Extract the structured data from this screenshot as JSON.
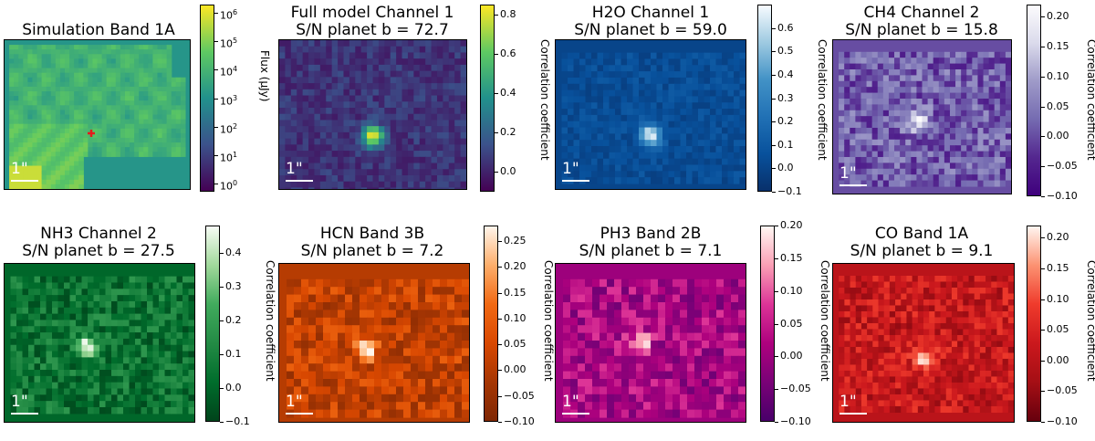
{
  "scale_label": "1\"",
  "chart_data": [
    {
      "type": "heatmap",
      "title_line1": "Simulation Band 1A",
      "title_line2": "",
      "colormap": "viridis",
      "colorbar_label": "Flux (μJy)",
      "colorbar_scale": "log",
      "clim": [
        0.5,
        2000000
      ],
      "ticks": [
        {
          "label": "10",
          "exp": "6",
          "value": 1000000
        },
        {
          "label": "10",
          "exp": "5",
          "value": 100000
        },
        {
          "label": "10",
          "exp": "4",
          "value": 10000
        },
        {
          "label": "10",
          "exp": "3",
          "value": 1000
        },
        {
          "label": "10",
          "exp": "2",
          "value": 100
        },
        {
          "label": "10",
          "exp": "1",
          "value": 10
        },
        {
          "label": "10",
          "exp": "0",
          "value": 1
        }
      ],
      "planet_marker": "red cross"
    },
    {
      "type": "heatmap",
      "title_line1": "Full model Channel 1",
      "title_line2": "S/N planet b = 72.7",
      "colormap": "viridis",
      "colorbar_label": "Correlation coefficient",
      "clim": [
        -0.1,
        0.85
      ],
      "ticks": [
        {
          "label": "0.8",
          "value": 0.8
        },
        {
          "label": "0.6",
          "value": 0.6
        },
        {
          "label": "0.4",
          "value": 0.4
        },
        {
          "label": "0.2",
          "value": 0.2
        },
        {
          "label": "0.0",
          "value": 0.0
        }
      ],
      "sn": 72.7
    },
    {
      "type": "heatmap",
      "title_line1": "H2O Channel 1",
      "title_line2": "S/N planet b = 59.0",
      "colormap": "blues",
      "colorbar_label": "Correlation coefficient",
      "clim": [
        -0.1,
        0.7
      ],
      "ticks": [
        {
          "label": "0.6",
          "value": 0.6
        },
        {
          "label": "0.5",
          "value": 0.5
        },
        {
          "label": "0.4",
          "value": 0.4
        },
        {
          "label": "0.3",
          "value": 0.3
        },
        {
          "label": "0.2",
          "value": 0.2
        },
        {
          "label": "0.1",
          "value": 0.1
        },
        {
          "label": "0.0",
          "value": 0.0
        },
        {
          "label": "−0.1",
          "value": -0.1
        }
      ],
      "sn": 59.0
    },
    {
      "type": "heatmap",
      "title_line1": "CH4 Channel 2",
      "title_line2": "S/N planet b = 15.8",
      "colormap": "purples",
      "colorbar_label": "Correlation coefficient",
      "clim": [
        -0.1,
        0.22
      ],
      "ticks": [
        {
          "label": "0.20",
          "value": 0.2
        },
        {
          "label": "0.15",
          "value": 0.15
        },
        {
          "label": "0.10",
          "value": 0.1
        },
        {
          "label": "0.05",
          "value": 0.05
        },
        {
          "label": "0.00",
          "value": 0.0
        },
        {
          "label": "−0.05",
          "value": -0.05
        },
        {
          "label": "−0.10",
          "value": -0.1
        }
      ],
      "sn": 15.8
    },
    {
      "type": "heatmap",
      "title_line1": "NH3 Channel 2",
      "title_line2": "S/N planet b = 27.5",
      "colormap": "greens",
      "colorbar_label": "Correlation coefficient",
      "clim": [
        -0.1,
        0.48
      ],
      "ticks": [
        {
          "label": "0.4",
          "value": 0.4
        },
        {
          "label": "0.3",
          "value": 0.3
        },
        {
          "label": "0.2",
          "value": 0.2
        },
        {
          "label": "0.1",
          "value": 0.1
        },
        {
          "label": "0.0",
          "value": 0.0
        },
        {
          "label": "−0.1",
          "value": -0.1
        }
      ],
      "sn": 27.5
    },
    {
      "type": "heatmap",
      "title_line1": "HCN Band 3B",
      "title_line2": "S/N planet b = 7.2",
      "colormap": "oranges",
      "colorbar_label": "Correlation coefficient",
      "clim": [
        -0.1,
        0.28
      ],
      "ticks": [
        {
          "label": "0.25",
          "value": 0.25
        },
        {
          "label": "0.20",
          "value": 0.2
        },
        {
          "label": "0.15",
          "value": 0.15
        },
        {
          "label": "0.10",
          "value": 0.1
        },
        {
          "label": "0.05",
          "value": 0.05
        },
        {
          "label": "0.00",
          "value": 0.0
        },
        {
          "label": "−0.05",
          "value": -0.05
        },
        {
          "label": "−0.10",
          "value": -0.1
        }
      ],
      "sn": 7.2
    },
    {
      "type": "heatmap",
      "title_line1": "PH3 Band 2B",
      "title_line2": "S/N planet b = 7.1",
      "colormap": "rdpu",
      "colorbar_label": "Correlation coefficient",
      "clim": [
        -0.1,
        0.2
      ],
      "ticks": [
        {
          "label": "0.20",
          "value": 0.2
        },
        {
          "label": "0.15",
          "value": 0.15
        },
        {
          "label": "0.10",
          "value": 0.1
        },
        {
          "label": "0.05",
          "value": 0.05
        },
        {
          "label": "0.00",
          "value": 0.0
        },
        {
          "label": "−0.05",
          "value": -0.05
        },
        {
          "label": "−0.10",
          "value": -0.1
        }
      ],
      "sn": 7.1
    },
    {
      "type": "heatmap",
      "title_line1": "CO Band 1A",
      "title_line2": "S/N planet b = 9.1",
      "colormap": "reds",
      "colorbar_label": "Correlation coefficient",
      "clim": [
        -0.1,
        0.22
      ],
      "ticks": [
        {
          "label": "0.20",
          "value": 0.2
        },
        {
          "label": "0.15",
          "value": 0.15
        },
        {
          "label": "0.10",
          "value": 0.1
        },
        {
          "label": "0.05",
          "value": 0.05
        },
        {
          "label": "0.00",
          "value": 0.0
        },
        {
          "label": "−0.05",
          "value": -0.05
        },
        {
          "label": "−0.10",
          "value": -0.1
        }
      ],
      "sn": 9.1
    }
  ]
}
